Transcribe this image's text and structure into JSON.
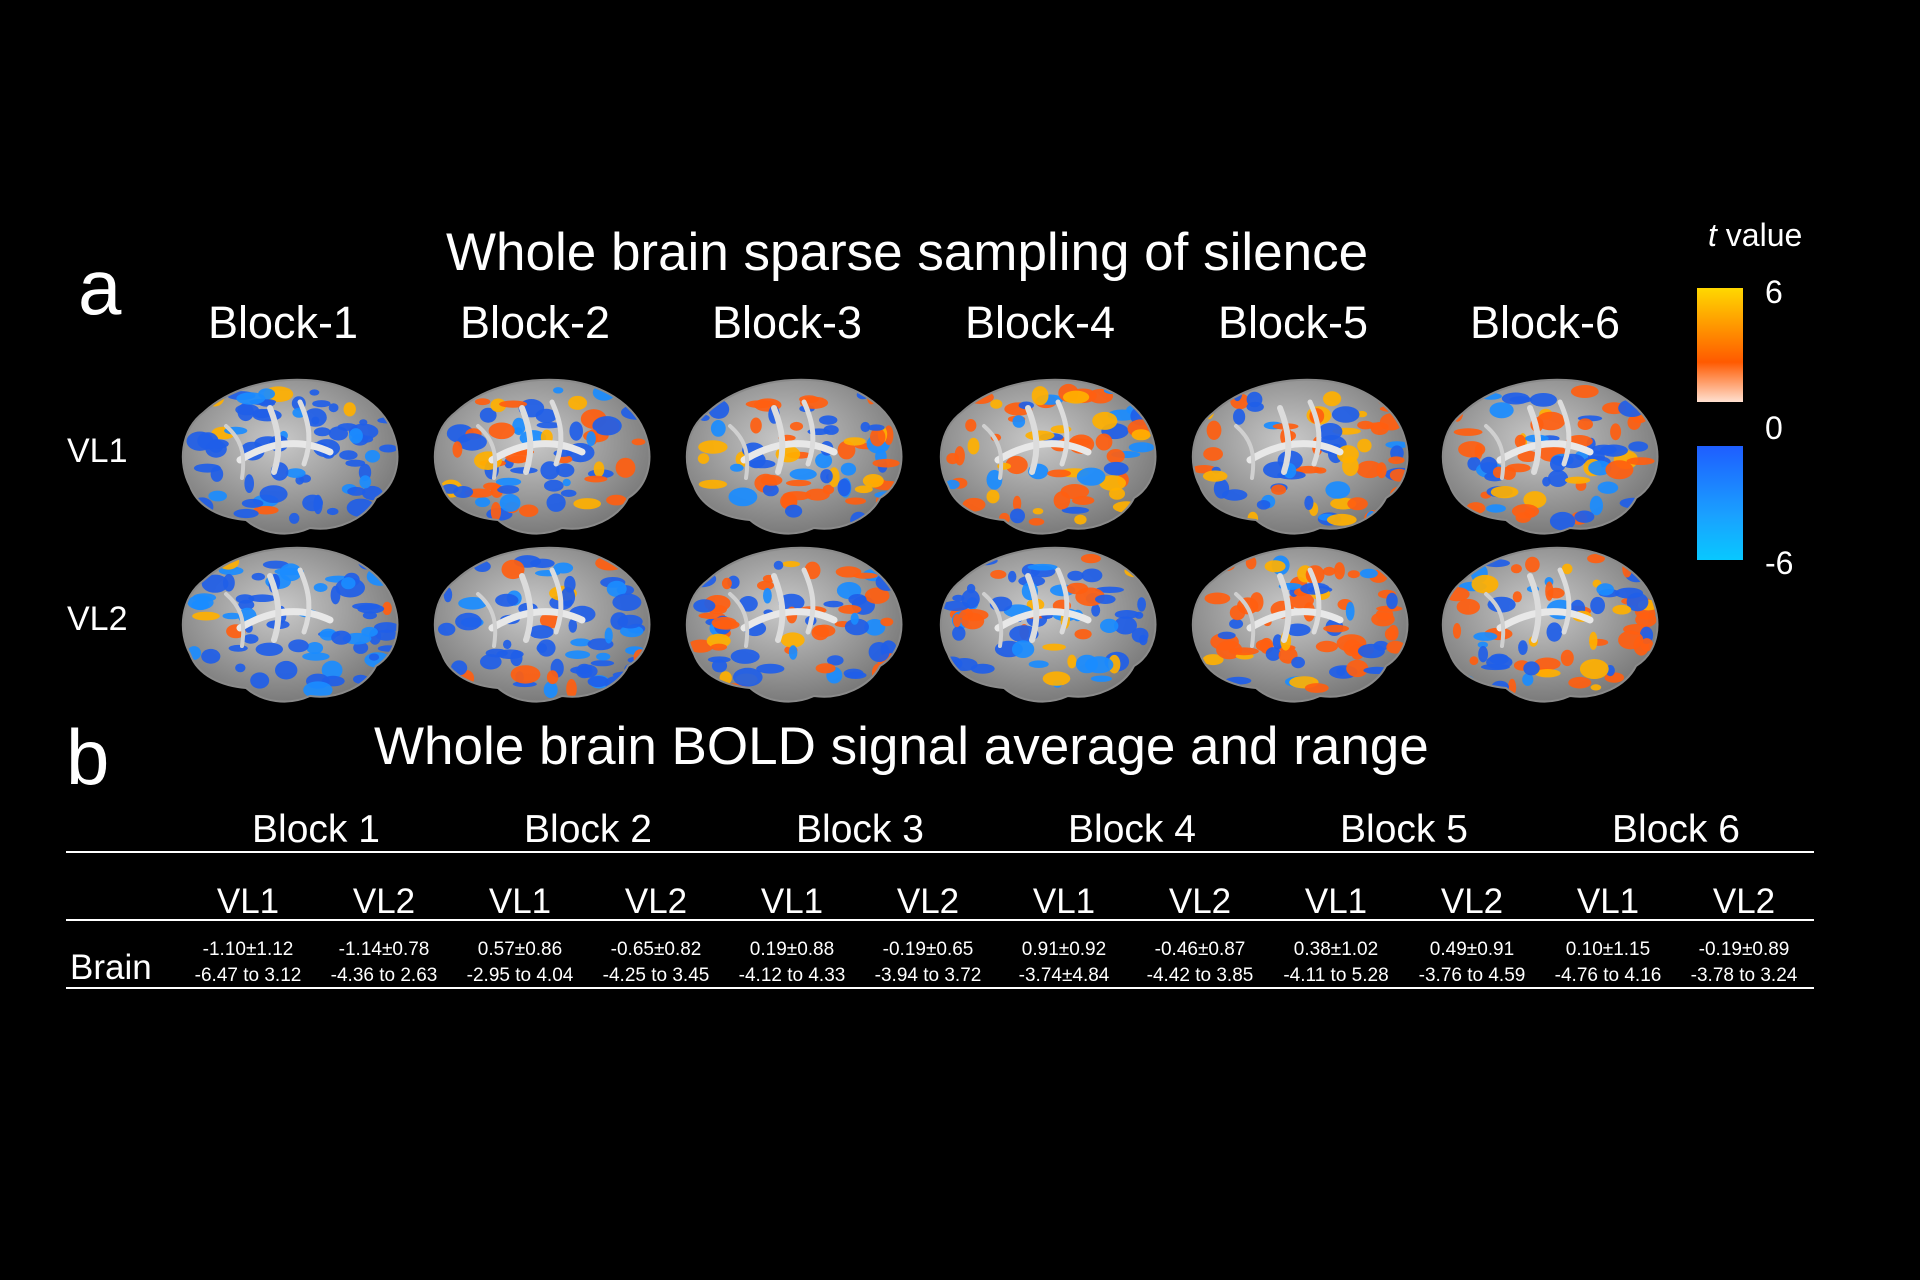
{
  "panel_a": {
    "letter": "a",
    "title": "Whole brain sparse sampling of silence",
    "blocks": [
      "Block-1",
      "Block-2",
      "Block-3",
      "Block-4",
      "Block-5",
      "Block-6"
    ],
    "rows": [
      "VL1",
      "VL2"
    ],
    "activation_orange_fraction": [
      [
        0.08,
        0.55,
        0.6,
        0.7,
        0.5,
        0.55
      ],
      [
        0.03,
        0.12,
        0.4,
        0.3,
        0.72,
        0.65
      ]
    ],
    "colorbar": {
      "title_italic": "t",
      "title_rest": " value",
      "ticks": [
        "6",
        "0",
        "-6"
      ],
      "positive_colors": [
        "#ffd800",
        "#ff5a00",
        "#ffe0d0"
      ],
      "negative_colors": [
        "#1e5eff",
        "#1aa0ff",
        "#08c8ff"
      ]
    }
  },
  "panel_b": {
    "letter": "b",
    "title": "Whole brain BOLD signal average and range",
    "blocks": [
      "Block 1",
      "Block 2",
      "Block 3",
      "Block 4",
      "Block 5",
      "Block 6"
    ],
    "sub_headers": [
      "VL1",
      "VL2",
      "VL1",
      "VL2",
      "VL1",
      "VL2",
      "VL1",
      "VL2",
      "VL1",
      "VL2",
      "VL1",
      "VL2"
    ],
    "row_label": "Brain",
    "cells": [
      {
        "mean": "-1.10±1.12",
        "range": "-6.47 to 3.12"
      },
      {
        "mean": "-1.14±0.78",
        "range": "-4.36 to 2.63"
      },
      {
        "mean": "0.57±0.86",
        "range": "-2.95 to 4.04"
      },
      {
        "mean": "-0.65±0.82",
        "range": "-4.25 to 3.45"
      },
      {
        "mean": "0.19±0.88",
        "range": "-4.12 to 4.33"
      },
      {
        "mean": "-0.19±0.65",
        "range": "-3.94 to 3.72"
      },
      {
        "mean": "0.91±0.92",
        "range": "-3.74±4.84"
      },
      {
        "mean": "-0.46±0.87",
        "range": "-4.42 to 3.85"
      },
      {
        "mean": "0.38±1.02",
        "range": "-4.11 to 5.28"
      },
      {
        "mean": "0.49±0.91",
        "range": "-3.76 to 4.59"
      },
      {
        "mean": "0.10±1.15",
        "range": "-4.76 to 4.16"
      },
      {
        "mean": "-0.19±0.89",
        "range": "-3.78 to 3.24"
      }
    ]
  }
}
